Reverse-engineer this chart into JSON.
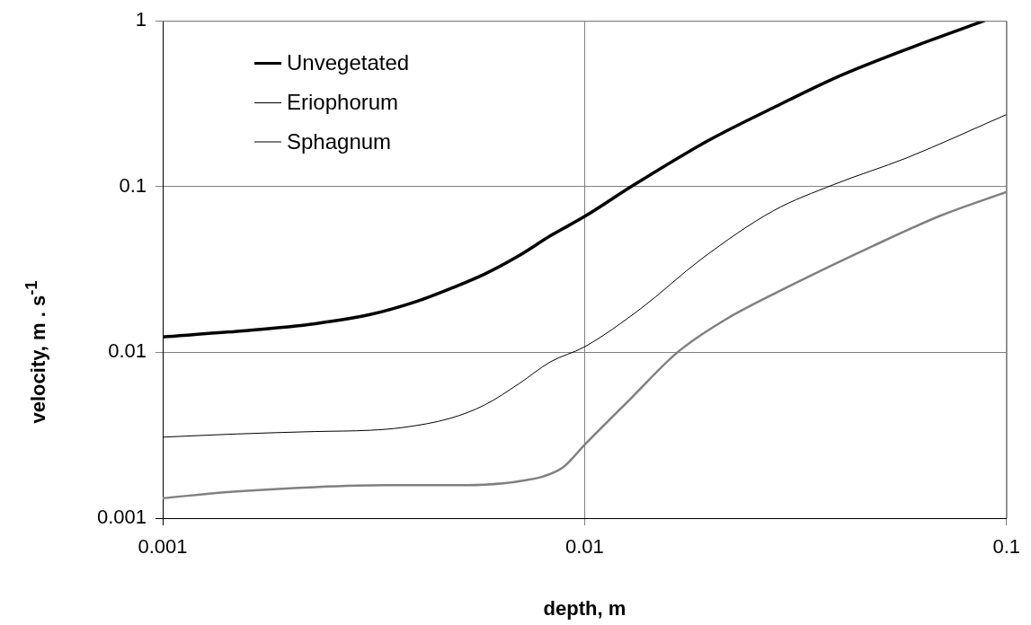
{
  "chart_data": {
    "type": "line",
    "xlabel": "depth, m",
    "ylabel": "velocity, m . s$^{-1}$",
    "log": "xy",
    "grid": true,
    "legend": "top left",
    "marker": "none",
    "line_style": "solid",
    "xlim": [
      0.001,
      0.1
    ],
    "xticks": [
      0.001,
      0.01,
      0.1
    ],
    "ylim": [
      0.001,
      1
    ],
    "yticks": [
      0.001,
      0.01,
      0.1,
      1
    ],
    "series": [
      {
        "name": "Unvegetated",
        "color": "#000000",
        "x": [
          0.001,
          0.0015,
          0.0023,
          0.0031,
          0.004,
          0.0048,
          0.0058,
          0.007,
          0.0083,
          0.01,
          0.0129,
          0.0196,
          0.028,
          0.04,
          0.058,
          0.0885
        ],
        "values": [
          0.0124,
          0.0134,
          0.0149,
          0.0169,
          0.0203,
          0.0242,
          0.0297,
          0.0384,
          0.0505,
          0.066,
          0.1,
          0.189,
          0.299,
          0.462,
          0.674,
          1.0
        ]
      },
      {
        "name": "Eriophorum",
        "color": "#000000",
        "x": [
          0.001,
          0.0015,
          0.0023,
          0.0031,
          0.0037,
          0.0048,
          0.0058,
          0.007,
          0.0083,
          0.01,
          0.0136,
          0.0189,
          0.028,
          0.039,
          0.058,
          0.1
        ],
        "values": [
          0.00308,
          0.00322,
          0.00333,
          0.00339,
          0.00352,
          0.004,
          0.00482,
          0.00649,
          0.00877,
          0.0108,
          0.0184,
          0.0365,
          0.0714,
          0.103,
          0.149,
          0.272
        ]
      },
      {
        "name": "Sphagnum",
        "color": "#808080",
        "x": [
          0.001,
          0.0015,
          0.0023,
          0.0034,
          0.0053,
          0.0064,
          0.0072,
          0.008,
          0.0089,
          0.01,
          0.0129,
          0.0166,
          0.0215,
          0.0308,
          0.0484,
          0.0697,
          0.1
        ],
        "values": [
          0.00132,
          0.00145,
          0.00154,
          0.00158,
          0.00158,
          0.00162,
          0.00169,
          0.00179,
          0.00203,
          0.00277,
          0.0053,
          0.01,
          0.0157,
          0.0253,
          0.044,
          0.0667,
          0.0929
        ]
      }
    ]
  }
}
